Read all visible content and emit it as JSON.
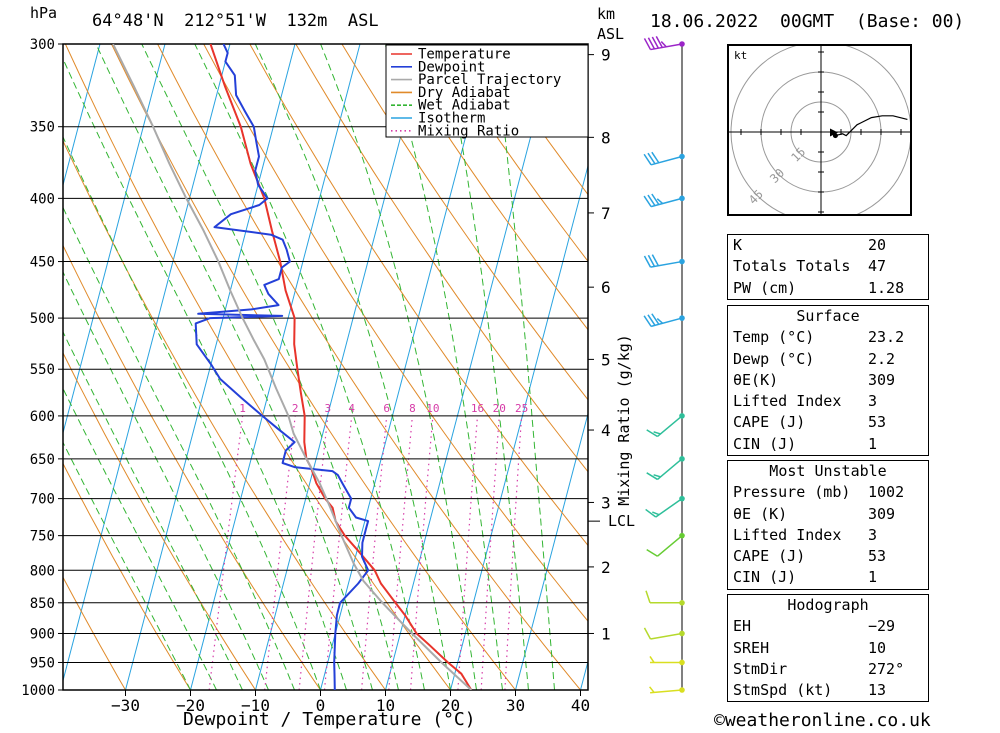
{
  "header": {
    "hpa_label": "hPa",
    "location": "64°48'N  212°51'W  132m  ASL",
    "km_label": "km",
    "asl_label": "ASL",
    "datetime": "18.06.2022  00GMT  (Base: 00)"
  },
  "chart_data": {
    "type": "line",
    "subtype": "skew-T log-P",
    "xlabel": "Dewpoint / Temperature (°C)",
    "ylabel": "hPa",
    "mixing_ratio_axis_label": "Mixing Ratio (g/kg)",
    "x_ticks": [
      -30,
      -20,
      -10,
      0,
      10,
      20,
      30,
      40
    ],
    "pressure_levels": [
      300,
      350,
      400,
      450,
      500,
      550,
      600,
      650,
      700,
      750,
      800,
      850,
      900,
      950,
      1000
    ],
    "km_ticks": [
      {
        "label": "9",
        "p": 306
      },
      {
        "label": "8",
        "p": 357
      },
      {
        "label": "7",
        "p": 411
      },
      {
        "label": "6",
        "p": 472
      },
      {
        "label": "5",
        "p": 540
      },
      {
        "label": "4",
        "p": 616
      },
      {
        "label": "3",
        "p": 705
      },
      {
        "label": "2",
        "p": 795
      },
      {
        "label": "1",
        "p": 900
      }
    ],
    "lcl": {
      "label": "LCL",
      "p": 730
    },
    "mixing_ratio_labels": [
      "1",
      "2",
      "3",
      "4",
      "6",
      "8",
      "10",
      "16",
      "20",
      "25"
    ],
    "legend": {
      "placement": "top-right",
      "items": [
        {
          "name": "Temperature",
          "color": "#e8342b"
        },
        {
          "name": "Dewpoint",
          "color": "#2440d8"
        },
        {
          "name": "Parcel Trajectory",
          "color": "#aaaaaa"
        },
        {
          "name": "Dry Adiabat",
          "color": "#e08a2a"
        },
        {
          "name": "Wet Adiabat",
          "color": "#33b533"
        },
        {
          "name": "Isotherm",
          "color": "#2aa3e0"
        },
        {
          "name": "Mixing Ratio",
          "color": "#d63ca8"
        }
      ]
    },
    "series": [
      {
        "name": "Temperature",
        "points": [
          [
            23.2,
            1000
          ],
          [
            21,
            970
          ],
          [
            18.5,
            950
          ],
          [
            15,
            920
          ],
          [
            12.5,
            900
          ],
          [
            10,
            870
          ],
          [
            8,
            850
          ],
          [
            5,
            820
          ],
          [
            3.5,
            800
          ],
          [
            0,
            770
          ],
          [
            -2.5,
            750
          ],
          [
            -4.5,
            730
          ],
          [
            -5.5,
            712
          ],
          [
            -7,
            700
          ],
          [
            -9,
            680
          ],
          [
            -10.5,
            660
          ],
          [
            -11.5,
            650
          ],
          [
            -12.5,
            630
          ],
          [
            -13.5,
            600
          ],
          [
            -15,
            575
          ],
          [
            -16.5,
            550
          ],
          [
            -18,
            525
          ],
          [
            -19,
            500
          ],
          [
            -21.5,
            475
          ],
          [
            -23.5,
            450
          ],
          [
            -26,
            425
          ],
          [
            -28.5,
            400
          ],
          [
            -32,
            375
          ],
          [
            -35,
            350
          ],
          [
            -39,
            325
          ],
          [
            -43,
            300
          ]
        ]
      },
      {
        "name": "Dewpoint",
        "points": [
          [
            2.2,
            1000
          ],
          [
            1.5,
            970
          ],
          [
            1,
            950
          ],
          [
            0,
            900
          ],
          [
            -0.5,
            870
          ],
          [
            -0.5,
            850
          ],
          [
            1.5,
            820
          ],
          [
            2.5,
            800
          ],
          [
            1,
            780
          ],
          [
            0.5,
            760
          ],
          [
            0.5,
            740
          ],
          [
            0.5,
            730
          ],
          [
            -1.5,
            725
          ],
          [
            -3,
            712
          ],
          [
            -3,
            700
          ],
          [
            -4,
            690
          ],
          [
            -5,
            680
          ],
          [
            -6,
            670
          ],
          [
            -7,
            665
          ],
          [
            -13,
            660
          ],
          [
            -15,
            655
          ],
          [
            -15,
            640
          ],
          [
            -14,
            630
          ],
          [
            -17,
            615
          ],
          [
            -20,
            600
          ],
          [
            -24,
            580
          ],
          [
            -28,
            560
          ],
          [
            -30,
            545
          ],
          [
            -33,
            525
          ],
          [
            -34,
            505
          ],
          [
            -32,
            500
          ],
          [
            -21,
            498
          ],
          [
            -34,
            496
          ],
          [
            -26,
            492
          ],
          [
            -22,
            488
          ],
          [
            -24,
            478
          ],
          [
            -25,
            470
          ],
          [
            -23,
            465
          ],
          [
            -23,
            455
          ],
          [
            -22,
            450
          ],
          [
            -23,
            440
          ],
          [
            -24,
            432
          ],
          [
            -26,
            428
          ],
          [
            -35,
            422
          ],
          [
            -33,
            412
          ],
          [
            -29,
            405
          ],
          [
            -28,
            400
          ],
          [
            -30,
            390
          ],
          [
            -31,
            380
          ],
          [
            -31,
            370
          ],
          [
            -32,
            360
          ],
          [
            -33,
            350
          ],
          [
            -35,
            340
          ],
          [
            -37,
            330
          ],
          [
            -38,
            318
          ],
          [
            -40,
            310
          ],
          [
            -40,
            305
          ],
          [
            -41,
            300
          ]
        ]
      },
      {
        "name": "Parcel Trajectory",
        "points": [
          [
            23.2,
            1000
          ],
          [
            17.5,
            950
          ],
          [
            11.8,
            900
          ],
          [
            6,
            850
          ],
          [
            2.2,
            816
          ],
          [
            0,
            790
          ],
          [
            -3,
            750
          ],
          [
            -6,
            710
          ],
          [
            -8.5,
            680
          ],
          [
            -11.5,
            650
          ],
          [
            -14.5,
            620
          ],
          [
            -16,
            600
          ],
          [
            -19,
            570
          ],
          [
            -22,
            540
          ],
          [
            -24.5,
            520
          ],
          [
            -27,
            500
          ],
          [
            -30,
            475
          ],
          [
            -33,
            450
          ],
          [
            -36.5,
            425
          ],
          [
            -40.5,
            400
          ],
          [
            -44.5,
            375
          ],
          [
            -48.5,
            350
          ],
          [
            -53,
            325
          ],
          [
            -58,
            300
          ]
        ]
      }
    ]
  },
  "wind_barbs": [
    {
      "p": 300,
      "dir": 260,
      "kt": 48,
      "color": "#9b25c8"
    },
    {
      "p": 370,
      "dir": 255,
      "kt": 30,
      "color": "#2aa3e0"
    },
    {
      "p": 400,
      "dir": 255,
      "kt": 35,
      "color": "#2aa3e0"
    },
    {
      "p": 450,
      "dir": 260,
      "kt": 30,
      "color": "#2aa3e0"
    },
    {
      "p": 500,
      "dir": 255,
      "kt": 35,
      "color": "#2aa3e0"
    },
    {
      "p": 600,
      "dir": 230,
      "kt": 15,
      "color": "#2ebf9a"
    },
    {
      "p": 650,
      "dir": 230,
      "kt": 15,
      "color": "#2ebf9a"
    },
    {
      "p": 700,
      "dir": 235,
      "kt": 15,
      "color": "#2ebf9a"
    },
    {
      "p": 750,
      "dir": 230,
      "kt": 10,
      "color": "#66cc33"
    },
    {
      "p": 850,
      "dir": 270,
      "kt": 10,
      "color": "#b5d92c"
    },
    {
      "p": 900,
      "dir": 260,
      "kt": 10,
      "color": "#b5d92c"
    },
    {
      "p": 950,
      "dir": 270,
      "kt": 5,
      "color": "#d9df20"
    },
    {
      "p": 1000,
      "dir": 265,
      "kt": 5,
      "color": "#d9df20"
    }
  ],
  "hodograph": {
    "unit": "kt",
    "ring_labels": [
      "15",
      "30",
      "45"
    ],
    "points": [
      [
        8,
        2
      ],
      [
        12,
        1
      ],
      [
        14,
        2
      ],
      [
        20,
        -4
      ],
      [
        22,
        -5
      ],
      [
        28,
        -8
      ],
      [
        34,
        -9
      ],
      [
        40,
        -9
      ],
      [
        48,
        -7
      ]
    ],
    "storm_motion": {
      "dir": 272,
      "kt": 13
    }
  },
  "indices": {
    "general": [
      {
        "label": "K",
        "value": "20"
      },
      {
        "label": "Totals Totals",
        "value": "47"
      },
      {
        "label": "PW (cm)",
        "value": "1.28"
      }
    ],
    "surface": {
      "title": "Surface",
      "rows": [
        {
          "label": "Temp (°C)",
          "value": "23.2"
        },
        {
          "label": "Dewp (°C)",
          "value": "2.2"
        },
        {
          "label": "θE(K)",
          "value": "309"
        },
        {
          "label": "Lifted Index",
          "value": "3"
        },
        {
          "label": "CAPE (J)",
          "value": "53"
        },
        {
          "label": "CIN (J)",
          "value": "1"
        }
      ]
    },
    "most_unstable": {
      "title": "Most Unstable",
      "rows": [
        {
          "label": "Pressure (mb)",
          "value": "1002"
        },
        {
          "label": "θE (K)",
          "value": "309"
        },
        {
          "label": "Lifted Index",
          "value": "3"
        },
        {
          "label": "CAPE (J)",
          "value": "53"
        },
        {
          "label": "CIN (J)",
          "value": "1"
        }
      ]
    },
    "hodograph": {
      "title": "Hodograph",
      "rows": [
        {
          "label": "EH",
          "value": "-29"
        },
        {
          "label": "SREH",
          "value": "10"
        },
        {
          "label": "StmDir",
          "value": "272°"
        },
        {
          "label": "StmSpd (kt)",
          "value": "13"
        }
      ]
    }
  },
  "footer": {
    "copyright_symbol": "©",
    "site": "weatheronline.co.uk"
  }
}
